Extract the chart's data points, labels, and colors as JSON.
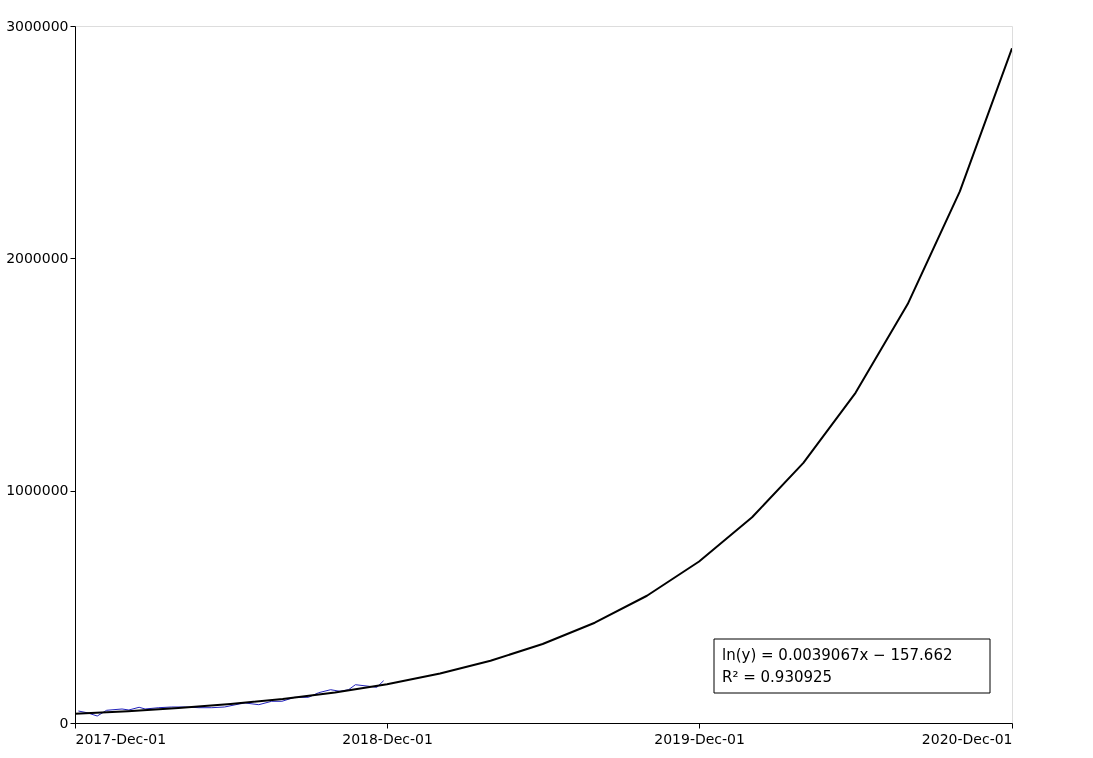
{
  "chart_data": {
    "type": "line",
    "xlim": [
      "2017-12-01",
      "2020-12-01"
    ],
    "xticks": [
      {
        "value": "2017-12-01",
        "label": "2017-Dec-01"
      },
      {
        "value": "2018-12-01",
        "label": "2018-Dec-01"
      },
      {
        "value": "2019-12-01",
        "label": "2019-Dec-01"
      },
      {
        "value": "2020-12-01",
        "label": "2020-Dec-01"
      }
    ],
    "ylim": [
      0,
      3000000
    ],
    "yticks": [
      0,
      1000000,
      2000000,
      3000000
    ],
    "grid": false,
    "marker": "none",
    "line_style": "solid",
    "series": [
      {
        "color": "#2222bb",
        "x": [
          "2017-12-05",
          "2017-12-15",
          "2017-12-27",
          "2018-01-07",
          "2018-01-25",
          "2018-02-02",
          "2018-02-14",
          "2018-02-21",
          "2018-03-09",
          "2018-03-24",
          "2018-04-09",
          "2018-04-25",
          "2018-05-10",
          "2018-05-25",
          "2018-06-11",
          "2018-06-18",
          "2018-07-04",
          "2018-07-19",
          "2018-07-31",
          "2018-08-15",
          "2018-08-31",
          "2018-09-12",
          "2018-09-26",
          "2018-10-07",
          "2018-10-17",
          "2018-10-25",
          "2018-11-10",
          "2018-11-19",
          "2018-11-27"
        ],
        "values": [
          51600,
          44300,
          30100,
          54700,
          60300,
          56000,
          67600,
          60300,
          65900,
          68900,
          68900,
          65900,
          65900,
          68900,
          81800,
          86100,
          78800,
          93400,
          93400,
          110600,
          110600,
          130400,
          143300,
          136400,
          143300,
          164800,
          158000,
          153600,
          182000
        ]
      },
      {
        "type": "line",
        "color": "#000000",
        "x": [
          "2017-12-01",
          "2018-02-01",
          "2018-04-01",
          "2018-06-01",
          "2018-08-01",
          "2018-10-01",
          "2018-12-01",
          "2019-02-01",
          "2019-04-01",
          "2019-06-01",
          "2019-08-01",
          "2019-10-01",
          "2019-12-01",
          "2020-02-01",
          "2020-04-01",
          "2020-06-01",
          "2020-08-01",
          "2020-10-01",
          "2020-12-01"
        ],
        "values": [
          40100,
          51100,
          64400,
          81700,
          103700,
          131600,
          167000,
          212800,
          267900,
          340100,
          431600,
          547700,
          695100,
          885600,
          1119500,
          1421000,
          1803000,
          2288000,
          2904000
        ]
      }
    ],
    "annotations": [
      "ln(y) = 0.0039067x − 157.662",
      "R² = 0.930925"
    ]
  }
}
